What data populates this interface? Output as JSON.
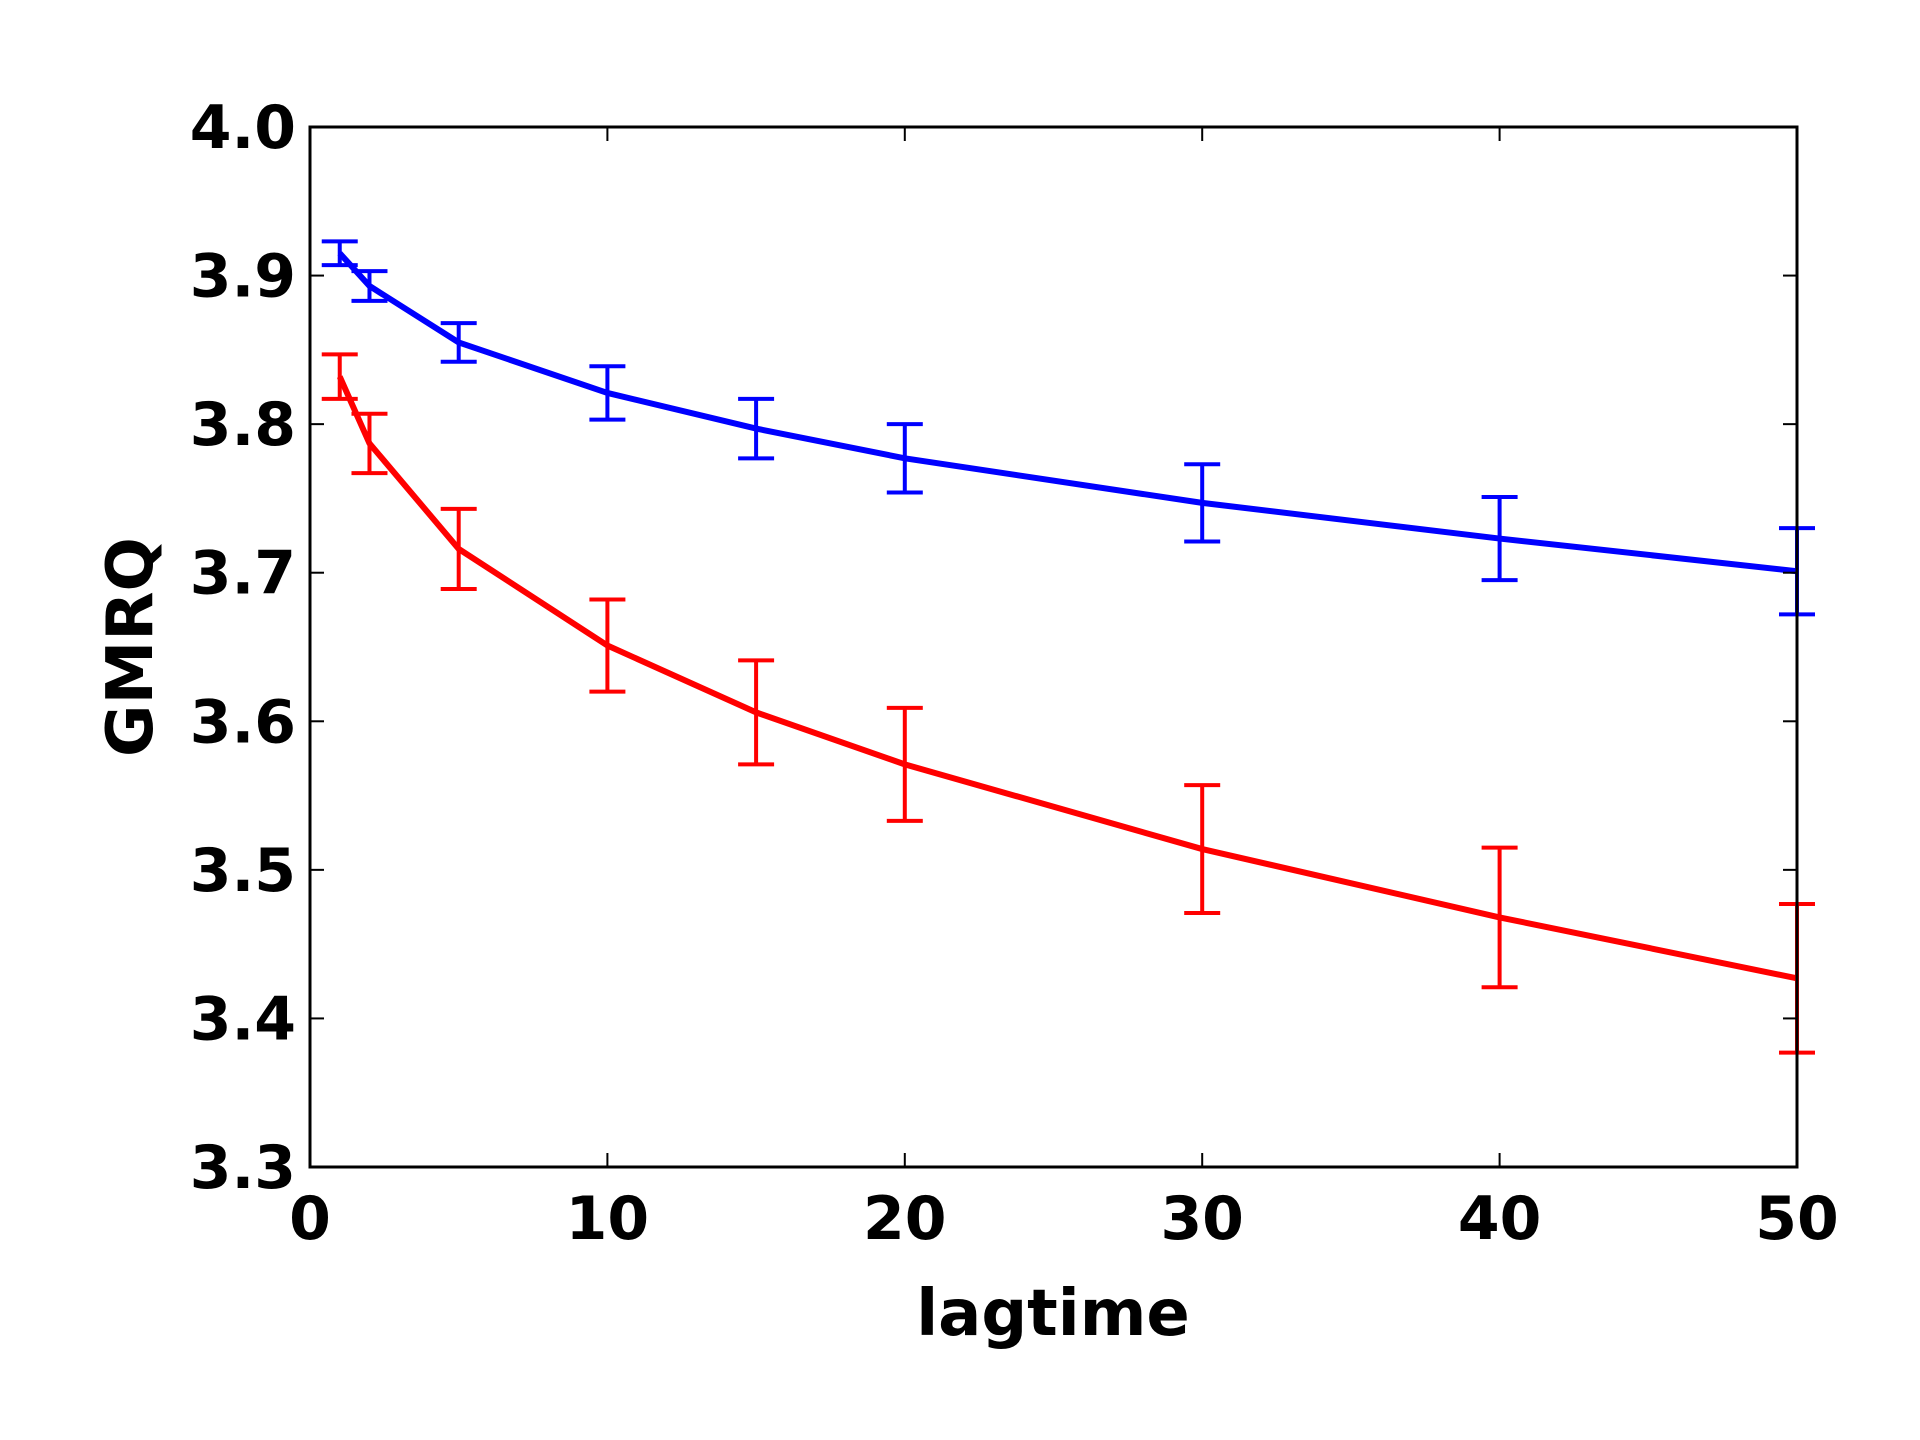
{
  "chart_data": {
    "type": "line",
    "title": "",
    "xlabel": "lagtime",
    "ylabel": "GMRQ",
    "xlim": [
      0,
      50
    ],
    "ylim": [
      3.3,
      4.0
    ],
    "xticks": [
      "0",
      "10",
      "20",
      "30",
      "40",
      "50"
    ],
    "yticks": [
      "3.3",
      "3.4",
      "3.5",
      "3.6",
      "3.7",
      "3.8",
      "3.9",
      "4.0"
    ],
    "grid": false,
    "legend": "none",
    "x": [
      1,
      2,
      5,
      10,
      15,
      20,
      30,
      40,
      50
    ],
    "series": [
      {
        "color": "#0000ff",
        "values": [
          3.915,
          3.893,
          3.855,
          3.821,
          3.797,
          3.777,
          3.747,
          3.723,
          3.701
        ],
        "errors": [
          0.008,
          0.01,
          0.013,
          0.018,
          0.02,
          0.023,
          0.026,
          0.028,
          0.029
        ]
      },
      {
        "color": "#ff0000",
        "values": [
          3.832,
          3.787,
          3.716,
          3.651,
          3.606,
          3.571,
          3.514,
          3.468,
          3.427
        ],
        "errors": [
          0.015,
          0.02,
          0.027,
          0.031,
          0.035,
          0.038,
          0.043,
          0.047,
          0.05
        ]
      }
    ]
  }
}
